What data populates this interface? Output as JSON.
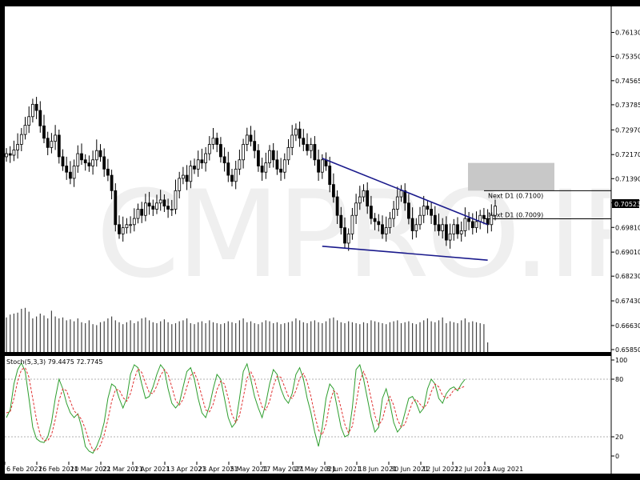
{
  "watermark": "CMPRO.IR",
  "chart_data": [
    {
      "type": "candlestick",
      "symbol_timeframe": "D1",
      "y_ticks": [
        "0.76130",
        "0.75350",
        "0.74565",
        "0.73785",
        "0.72970",
        "0.72170",
        "0.71390",
        "0.70610",
        "0.69810",
        "0.69010",
        "0.68230",
        "0.67430",
        "0.66630",
        "0.65850"
      ],
      "ylim": [
        0.6585,
        0.7635
      ],
      "x_tick_labels": [
        "6 Feb 2021",
        "26 Feb 2021",
        "10 Mar 2021",
        "22 Mar 2021",
        "1 Apr 2021",
        "13 Apr 2021",
        "23 Apr 2021",
        "5 May 2021",
        "17 May 2021",
        "27 May 2021",
        "8 Jun 2021",
        "18 Jun 2021",
        "30 Jun 2021",
        "12 Jul 2021",
        "22 Jul 2021",
        "3 Aug 2021"
      ],
      "current_price": "0.70523",
      "levels": [
        {
          "label": "Next D1 (0.7100)",
          "value": 0.71
        },
        {
          "label": "Next D1 (0.7009)",
          "value": 0.7009
        }
      ],
      "resistance_zone": [
        0.71,
        0.719
      ],
      "trendlines": [
        {
          "name": "upper",
          "from_index": 84,
          "from_value": 0.7205,
          "to_index": 128,
          "to_value": 0.699
        },
        {
          "name": "lower",
          "from_index": 84,
          "from_value": 0.692,
          "to_index": 128,
          "to_value": 0.6875
        }
      ],
      "close": [
        0.722,
        0.7215,
        0.7232,
        0.725,
        0.7282,
        0.7312,
        0.734,
        0.738,
        0.736,
        0.731,
        0.727,
        0.724,
        0.726,
        0.728,
        0.721,
        0.718,
        0.716,
        0.714,
        0.718,
        0.722,
        0.72,
        0.719,
        0.718,
        0.72,
        0.723,
        0.721,
        0.717,
        0.715,
        0.71,
        0.699,
        0.696,
        0.698,
        0.699,
        0.699,
        0.701,
        0.704,
        0.702,
        0.706,
        0.705,
        0.704,
        0.706,
        0.707,
        0.705,
        0.704,
        0.704,
        0.71,
        0.714,
        0.715,
        0.713,
        0.718,
        0.717,
        0.72,
        0.719,
        0.722,
        0.725,
        0.727,
        0.725,
        0.721,
        0.719,
        0.715,
        0.713,
        0.717,
        0.72,
        0.725,
        0.728,
        0.726,
        0.723,
        0.718,
        0.716,
        0.719,
        0.723,
        0.72,
        0.717,
        0.716,
        0.72,
        0.724,
        0.728,
        0.73,
        0.727,
        0.725,
        0.723,
        0.725,
        0.72,
        0.716,
        0.72,
        0.718,
        0.712,
        0.708,
        0.702,
        0.698,
        0.693,
        0.696,
        0.702,
        0.706,
        0.708,
        0.71,
        0.705,
        0.701,
        0.7,
        0.699,
        0.696,
        0.698,
        0.701,
        0.704,
        0.708,
        0.71,
        0.706,
        0.701,
        0.697,
        0.699,
        0.702,
        0.705,
        0.704,
        0.702,
        0.699,
        0.697,
        0.699,
        0.694,
        0.696,
        0.699,
        0.696,
        0.697,
        0.701,
        0.7,
        0.698,
        0.7,
        0.702,
        0.701,
        0.699,
        0.702,
        0.705
      ]
    },
    {
      "type": "line",
      "title": "Stoch(5,3,3) 79.4475 72.7745",
      "y_ticks": [
        "100",
        "80",
        "20",
        "0"
      ],
      "ylim": [
        0,
        100
      ],
      "series": [
        {
          "name": "Main",
          "color": "#2e9e2e",
          "values": [
            40,
            48,
            75,
            90,
            97,
            88,
            60,
            30,
            18,
            15,
            14,
            20,
            35,
            60,
            80,
            70,
            55,
            45,
            40,
            44,
            30,
            10,
            5,
            3,
            10,
            20,
            35,
            60,
            75,
            72,
            60,
            50,
            60,
            85,
            95,
            92,
            75,
            60,
            62,
            72,
            85,
            95,
            90,
            70,
            55,
            50,
            55,
            72,
            88,
            92,
            80,
            60,
            45,
            40,
            52,
            70,
            85,
            80,
            60,
            40,
            30,
            35,
            60,
            88,
            96,
            80,
            62,
            50,
            40,
            55,
            75,
            90,
            85,
            70,
            60,
            55,
            65,
            85,
            92,
            80,
            60,
            45,
            25,
            10,
            30,
            60,
            75,
            70,
            50,
            30,
            20,
            22,
            50,
            90,
            95,
            80,
            60,
            40,
            25,
            30,
            60,
            70,
            55,
            35,
            25,
            30,
            45,
            60,
            62,
            55,
            45,
            50,
            70,
            80,
            75,
            60,
            55,
            65,
            70,
            72,
            68,
            75,
            80
          ]
        },
        {
          "name": "Signal",
          "color": "#e03030",
          "dashed": true,
          "values": [
            45,
            46,
            60,
            78,
            90,
            92,
            82,
            60,
            38,
            22,
            16,
            16,
            22,
            38,
            58,
            70,
            68,
            57,
            47,
            43,
            38,
            28,
            15,
            6,
            6,
            11,
            22,
            38,
            57,
            69,
            69,
            61,
            57,
            65,
            80,
            91,
            87,
            76,
            66,
            65,
            73,
            84,
            90,
            85,
            72,
            58,
            53,
            59,
            72,
            84,
            87,
            77,
            62,
            48,
            46,
            54,
            69,
            78,
            75,
            60,
            43,
            35,
            42,
            61,
            81,
            88,
            79,
            64,
            51,
            48,
            57,
            73,
            83,
            82,
            72,
            62,
            60,
            68,
            81,
            86,
            77,
            62,
            43,
            27,
            22,
            33,
            55,
            68,
            65,
            50,
            33,
            24,
            31,
            54,
            78,
            88,
            78,
            60,
            42,
            32,
            38,
            53,
            62,
            53,
            38,
            30,
            33,
            45,
            56,
            59,
            54,
            50,
            55,
            67,
            75,
            72,
            63,
            60,
            63,
            69,
            70,
            71,
            73
          ]
        }
      ]
    },
    {
      "type": "bar",
      "series": [
        {
          "name": "Volume",
          "values": [
            0.72,
            0.78,
            0.8,
            0.82,
            0.9,
            0.92,
            0.84,
            0.7,
            0.74,
            0.8,
            0.76,
            0.7,
            0.86,
            0.74,
            0.7,
            0.72,
            0.66,
            0.68,
            0.64,
            0.7,
            0.62,
            0.6,
            0.66,
            0.58,
            0.56,
            0.62,
            0.64,
            0.7,
            0.74,
            0.66,
            0.62,
            0.58,
            0.62,
            0.66,
            0.6,
            0.64,
            0.7,
            0.72,
            0.66,
            0.62,
            0.6,
            0.64,
            0.68,
            0.62,
            0.58,
            0.6,
            0.64,
            0.66,
            0.7,
            0.6,
            0.58,
            0.62,
            0.64,
            0.6,
            0.66,
            0.62,
            0.6,
            0.58,
            0.6,
            0.64,
            0.62,
            0.6,
            0.66,
            0.7,
            0.62,
            0.64,
            0.6,
            0.58,
            0.62,
            0.66,
            0.64,
            0.6,
            0.62,
            0.58,
            0.6,
            0.62,
            0.64,
            0.7,
            0.66,
            0.62,
            0.6,
            0.64,
            0.66,
            0.62,
            0.6,
            0.64,
            0.7,
            0.72,
            0.66,
            0.62,
            0.6,
            0.64,
            0.62,
            0.6,
            0.58,
            0.62,
            0.6,
            0.66,
            0.64,
            0.62,
            0.6,
            0.58,
            0.62,
            0.64,
            0.66,
            0.6,
            0.62,
            0.64,
            0.6,
            0.58,
            0.62,
            0.66,
            0.7,
            0.64,
            0.62,
            0.66,
            0.72,
            0.6,
            0.64,
            0.62,
            0.6,
            0.66,
            0.7,
            0.62,
            0.64,
            0.62,
            0.6,
            0.58,
            0.2
          ]
        }
      ]
    }
  ]
}
